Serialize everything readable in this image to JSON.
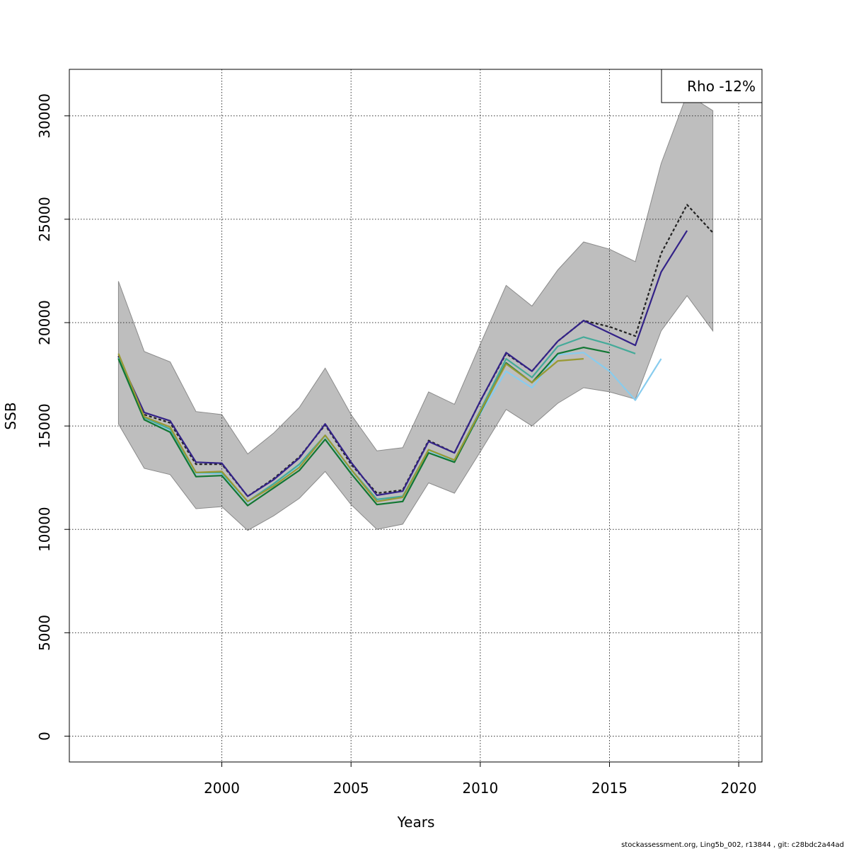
{
  "chart_data": {
    "type": "line",
    "xlabel": "Years",
    "ylabel": "SSB",
    "xlim": [
      1994.1,
      2020.9
    ],
    "ylim": [
      -1250,
      32250
    ],
    "xticks": [
      2000,
      2005,
      2010,
      2015,
      2020
    ],
    "yticks": [
      0,
      5000,
      10000,
      15000,
      20000,
      25000,
      30000
    ],
    "grid": true,
    "legend": {
      "position": "top-right",
      "text": "Rho -12%"
    },
    "band": {
      "color": "#bebebe",
      "x": [
        1996,
        1997,
        1998,
        1999,
        2000,
        2001,
        2002,
        2003,
        2004,
        2005,
        2006,
        2007,
        2008,
        2009,
        2010,
        2011,
        2012,
        2013,
        2014,
        2015,
        2016,
        2017,
        2018,
        2019
      ],
      "upper": [
        22000,
        18600,
        18100,
        15700,
        15550,
        13650,
        14650,
        15900,
        17800,
        15550,
        13800,
        13950,
        16650,
        16050,
        18950,
        21800,
        20800,
        22550,
        23900,
        23550,
        22950,
        27700,
        31050,
        30250
      ],
      "lower": [
        15100,
        12950,
        12650,
        11000,
        11100,
        9950,
        10650,
        11500,
        12800,
        11200,
        10000,
        10250,
        12250,
        11750,
        13750,
        15800,
        15000,
        16100,
        16850,
        16650,
        16300,
        19600,
        21300,
        19600
      ]
    },
    "series": [
      {
        "color": "#222222",
        "dashed": true,
        "x": [
          1996,
          1997,
          1998,
          1999,
          2000,
          2001,
          2002,
          2003,
          2004,
          2005,
          2006,
          2007,
          2008,
          2009,
          2010,
          2011,
          2012,
          2013,
          2014,
          2015,
          2016,
          2017,
          2018,
          2019
        ],
        "values": [
          18400,
          15550,
          15150,
          13150,
          13150,
          11600,
          12450,
          13500,
          15050,
          13150,
          11750,
          11900,
          14300,
          13700,
          16200,
          18500,
          17650,
          19100,
          20100,
          19800,
          19350,
          23350,
          25700,
          24350
        ]
      },
      {
        "color": "#332288",
        "x": [
          1996,
          1997,
          1998,
          1999,
          2000,
          2001,
          2002,
          2003,
          2004,
          2005,
          2006,
          2007,
          2008,
          2009,
          2010,
          2011,
          2012,
          2013,
          2014,
          2015,
          2016,
          2017,
          2018
        ],
        "values": [
          18350,
          15650,
          15250,
          13250,
          13200,
          11600,
          12400,
          13450,
          15100,
          13250,
          11650,
          11850,
          14250,
          13700,
          16200,
          18550,
          17650,
          19100,
          20100,
          19500,
          18900,
          22450,
          24450
        ]
      },
      {
        "color": "#88ccee",
        "x": [
          1996,
          1997,
          1998,
          1999,
          2000,
          2001,
          2002,
          2003,
          2004,
          2005,
          2006,
          2007,
          2008,
          2009,
          2010,
          2011,
          2012,
          2013,
          2014,
          2015,
          2016,
          2017
        ],
        "values": [
          18300,
          15400,
          14800,
          12700,
          12700,
          11300,
          12150,
          13100,
          14500,
          12850,
          11400,
          11550,
          13800,
          13300,
          15600,
          17650,
          16850,
          18450,
          18550,
          17650,
          16250,
          18250
        ]
      },
      {
        "color": "#44aa99",
        "x": [
          1996,
          1997,
          1998,
          1999,
          2000,
          2001,
          2002,
          2003,
          2004,
          2005,
          2006,
          2007,
          2008,
          2009,
          2010,
          2011,
          2012,
          2013,
          2014,
          2015,
          2016
        ],
        "values": [
          18300,
          15400,
          14850,
          12750,
          12750,
          11350,
          12200,
          13150,
          14550,
          12900,
          11450,
          11600,
          13850,
          13350,
          15750,
          18250,
          17350,
          18850,
          19300,
          18950,
          18500
        ]
      },
      {
        "color": "#117733",
        "x": [
          1996,
          1997,
          1998,
          1999,
          2000,
          2001,
          2002,
          2003,
          2004,
          2005,
          2006,
          2007,
          2008,
          2009,
          2010,
          2011,
          2012,
          2013,
          2014,
          2015
        ],
        "values": [
          18250,
          15300,
          14700,
          12550,
          12600,
          11150,
          12000,
          12850,
          14350,
          12700,
          11200,
          11350,
          13700,
          13250,
          15650,
          18050,
          17100,
          18500,
          18800,
          18550
        ]
      },
      {
        "color": "#999933",
        "x": [
          1996,
          1997,
          1998,
          1999,
          2000,
          2001,
          2002,
          2003,
          2004,
          2005,
          2006,
          2007,
          2008,
          2009,
          2010,
          2011,
          2012,
          2013,
          2014
        ],
        "values": [
          18500,
          15450,
          14950,
          12750,
          12800,
          11350,
          12100,
          13000,
          14550,
          12900,
          11350,
          11550,
          13850,
          13350,
          15700,
          18000,
          17100,
          18150,
          18250
        ]
      }
    ],
    "footer": "stockassessment.org, Ling5b_002, r13844 , git: c28bdc2a44ad"
  }
}
